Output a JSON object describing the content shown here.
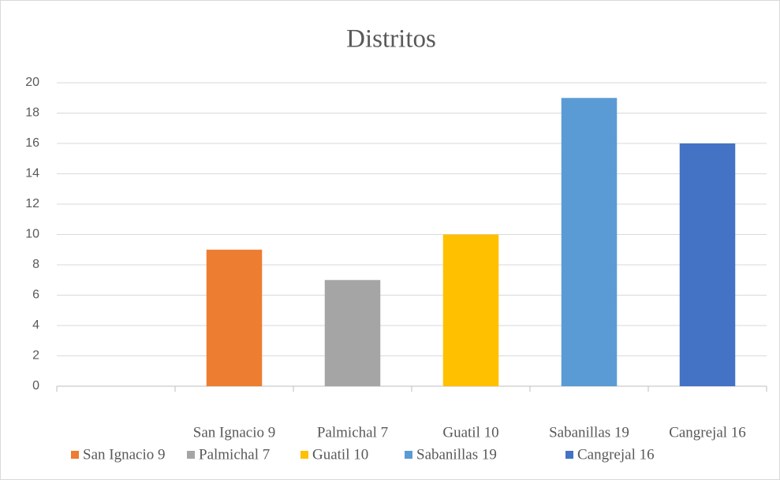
{
  "chart_data": {
    "type": "bar",
    "title": "Distritos",
    "categories": [
      null,
      "San Ignacio 9",
      "Palmichal 7",
      "Guatil 10",
      "Sabanillas 19",
      "Cangrejal 16"
    ],
    "values": [
      null,
      9,
      7,
      10,
      19,
      16
    ],
    "colors": [
      null,
      "#ed7d31",
      "#a5a5a5",
      "#ffc000",
      "#5b9bd5",
      "#4472c4"
    ],
    "ylim": [
      0,
      20
    ],
    "yticks": [
      0,
      2,
      4,
      6,
      8,
      10,
      12,
      14,
      16,
      18,
      20
    ],
    "grid": true,
    "legend": "bottom"
  }
}
